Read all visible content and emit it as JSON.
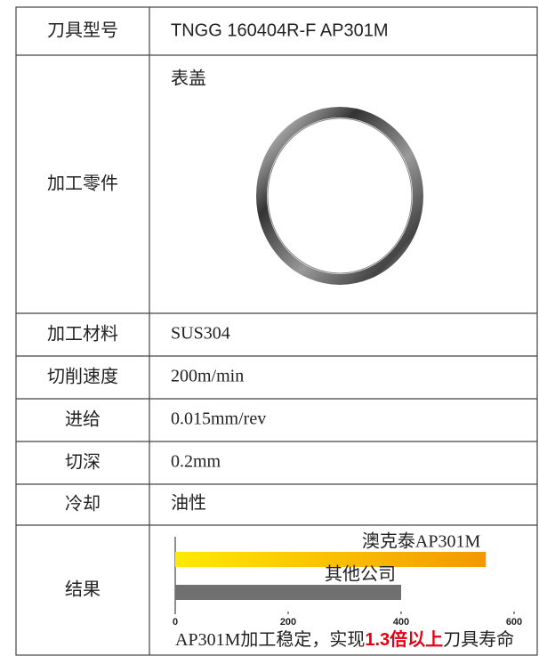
{
  "table": {
    "rows": [
      [
        "刀具型号",
        "TNGG 160404R-F AP301M"
      ],
      [
        "加工零件",
        "表盖"
      ],
      [
        "加工材料",
        "SUS304"
      ],
      [
        "切削速度",
        "200m/min"
      ],
      [
        "进给",
        "0.015mm/rev"
      ],
      [
        "切深",
        "0.2mm"
      ],
      [
        "冷却",
        "油性"
      ],
      [
        "结果"
      ]
    ]
  },
  "chart_data": {
    "type": "bar",
    "orientation": "horizontal",
    "categories": [
      "澳克泰AP301M",
      "其他公司"
    ],
    "values": [
      550,
      400
    ],
    "colors": [
      "#f39800",
      "#707070"
    ],
    "xlim": [
      0,
      600
    ],
    "xticks": [
      0,
      200,
      400,
      600
    ],
    "caption": [
      "AP301M加工稳定，实现",
      "1.3倍以上",
      "刀具寿命"
    ],
    "caption_highlight_color": "#e60012"
  }
}
